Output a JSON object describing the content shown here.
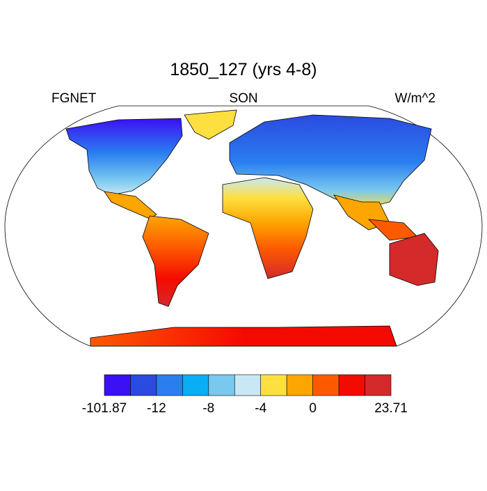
{
  "title": "1850_127 (yrs 4-8)",
  "left_string": "FGNET",
  "center_string": "SON",
  "right_string": "W/m^2",
  "colorbar": {
    "colors": [
      "#3b10f5",
      "#2b4ae0",
      "#2a7ef0",
      "#0aaef5",
      "#78c8f0",
      "#c8e8f5",
      "#fde040",
      "#fda500",
      "#fd5a00",
      "#f50a00",
      "#d42a2a"
    ],
    "labels": [
      -101.87,
      -12,
      -8,
      -4,
      0,
      23.71
    ]
  }
}
